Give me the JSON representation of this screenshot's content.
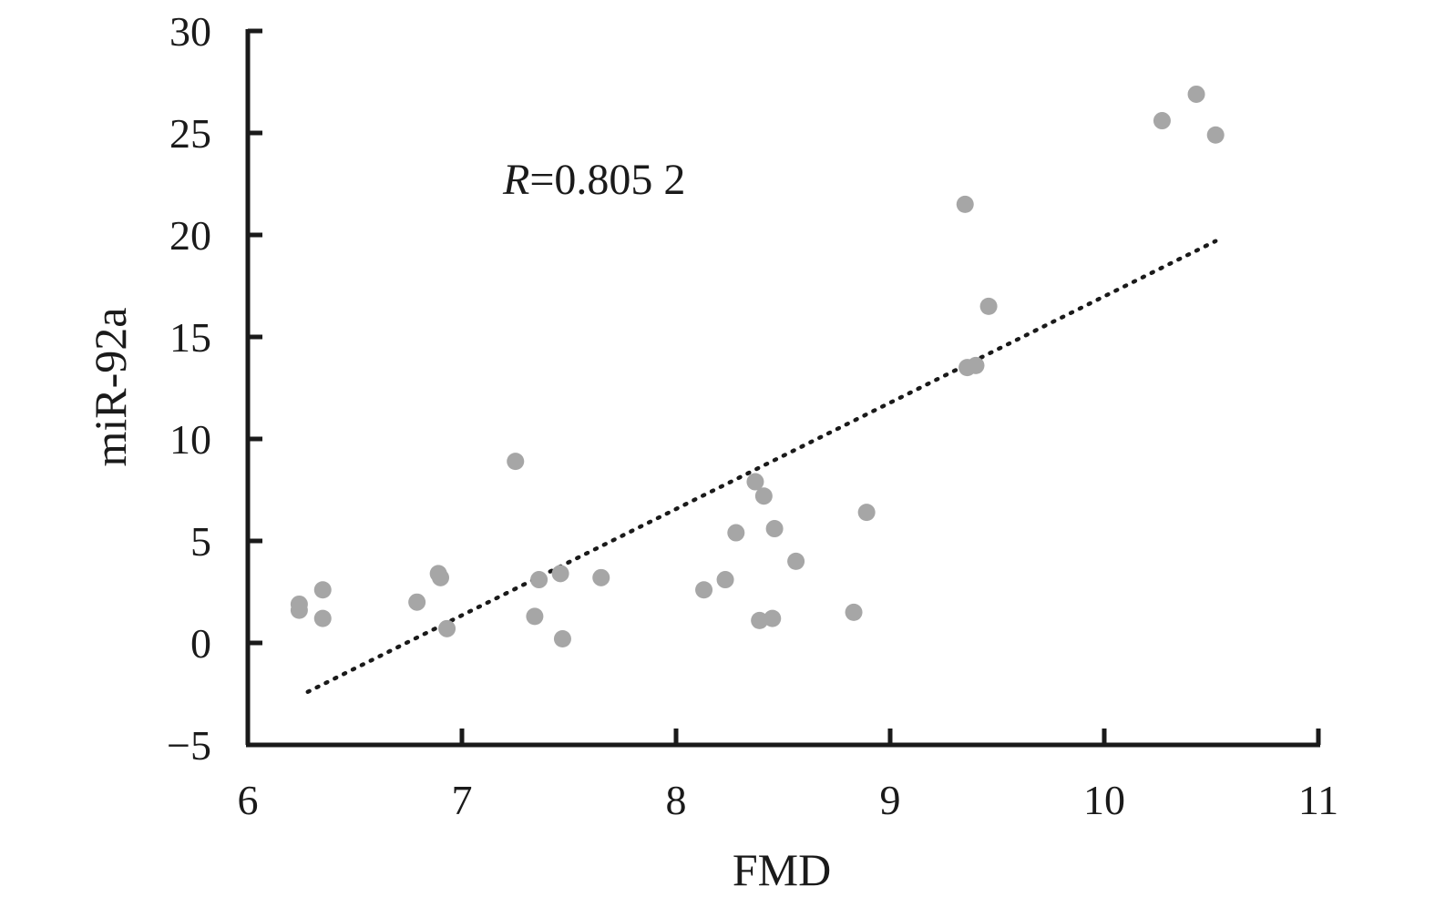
{
  "chart_data": {
    "type": "scatter",
    "xlabel": "FMD",
    "ylabel": "miR-92a",
    "xlim": [
      6,
      11
    ],
    "ylim": [
      -5,
      30
    ],
    "xticks": [
      6,
      7,
      8,
      9,
      10,
      11
    ],
    "xtick_labels": [
      "6",
      "7",
      "8",
      "9",
      "10",
      "11"
    ],
    "yticks": [
      -5,
      0,
      5,
      10,
      15,
      20,
      25,
      30
    ],
    "ytick_labels": [
      "−5",
      "0",
      "5",
      "10",
      "15",
      "20",
      "25",
      "30"
    ],
    "annotation": {
      "italic": "R",
      "text": "=0.805 2"
    },
    "point_color": "#a6a6a6",
    "trendline": {
      "style": "dotted",
      "x_start": 6.28,
      "y_start": -2.4,
      "x_end": 10.52,
      "y_end": 19.7
    },
    "points": [
      {
        "x": 6.24,
        "y": 1.9
      },
      {
        "x": 6.24,
        "y": 1.6
      },
      {
        "x": 6.35,
        "y": 2.6
      },
      {
        "x": 6.35,
        "y": 1.2
      },
      {
        "x": 6.79,
        "y": 2.0
      },
      {
        "x": 6.89,
        "y": 3.4
      },
      {
        "x": 6.9,
        "y": 3.2
      },
      {
        "x": 6.93,
        "y": 0.7
      },
      {
        "x": 7.25,
        "y": 8.9
      },
      {
        "x": 7.34,
        "y": 1.3
      },
      {
        "x": 7.36,
        "y": 3.1
      },
      {
        "x": 7.46,
        "y": 3.4
      },
      {
        "x": 7.47,
        "y": 0.2
      },
      {
        "x": 7.65,
        "y": 3.2
      },
      {
        "x": 8.13,
        "y": 2.6
      },
      {
        "x": 8.23,
        "y": 3.1
      },
      {
        "x": 8.28,
        "y": 5.4
      },
      {
        "x": 8.37,
        "y": 7.9
      },
      {
        "x": 8.39,
        "y": 1.1
      },
      {
        "x": 8.41,
        "y": 7.2
      },
      {
        "x": 8.45,
        "y": 1.2
      },
      {
        "x": 8.46,
        "y": 5.6
      },
      {
        "x": 8.56,
        "y": 4.0
      },
      {
        "x": 8.83,
        "y": 1.5
      },
      {
        "x": 8.89,
        "y": 6.4
      },
      {
        "x": 9.35,
        "y": 21.5
      },
      {
        "x": 9.36,
        "y": 13.5
      },
      {
        "x": 9.4,
        "y": 13.6
      },
      {
        "x": 9.46,
        "y": 16.5
      },
      {
        "x": 10.27,
        "y": 25.6
      },
      {
        "x": 10.43,
        "y": 26.9
      },
      {
        "x": 10.52,
        "y": 24.9
      }
    ]
  }
}
